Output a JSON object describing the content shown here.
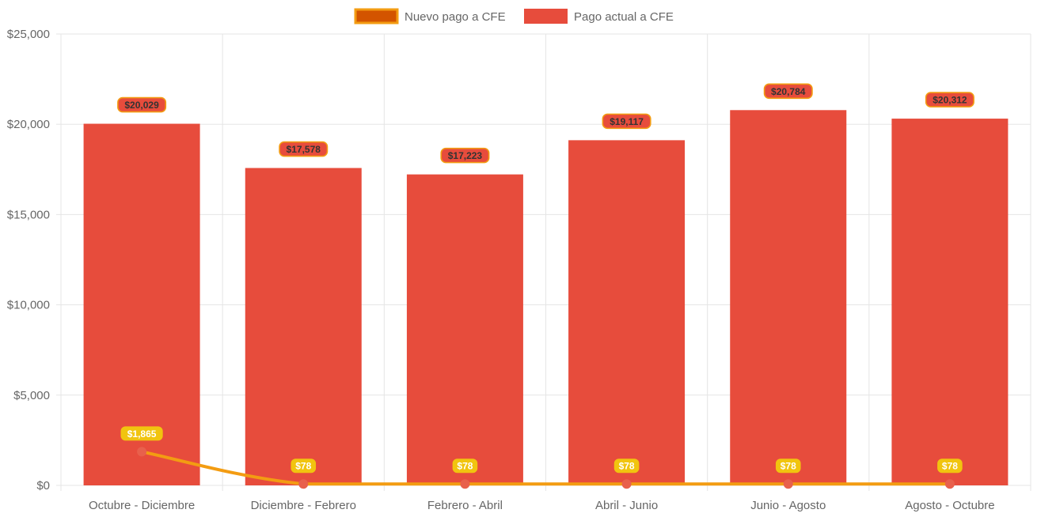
{
  "chart_data": {
    "type": "bar",
    "categories": [
      "Octubre - Diciembre",
      "Diciembre - Febrero",
      "Febrero - Abril",
      "Abril - Junio",
      "Junio - Agosto",
      "Agosto - Octubre"
    ],
    "series": [
      {
        "name": "Nuevo pago a CFE",
        "render": "line",
        "values": [
          1865,
          78,
          78,
          78,
          78,
          78
        ],
        "labels": [
          "$1,865",
          "$78",
          "$78",
          "$78",
          "$78",
          "$78"
        ],
        "color": "#f39c12",
        "point_color": "#e8604c",
        "label_bg": "#f1c40f",
        "label_text_color": "#ffffff",
        "legend_fill": "#d35400"
      },
      {
        "name": "Pago actual a CFE",
        "render": "bar",
        "values": [
          20029,
          17578,
          17223,
          19117,
          20784,
          20312
        ],
        "labels": [
          "$20,029",
          "$17,578",
          "$17,223",
          "$19,117",
          "$20,784",
          "$20,312"
        ],
        "color": "#e74c3c",
        "label_bg": "#e74c3c",
        "label_border": "#f39c12",
        "label_text_color": "#333333"
      }
    ],
    "y_ticks": [
      0,
      5000,
      10000,
      15000,
      20000,
      25000
    ],
    "y_tick_labels": [
      "$0",
      "$5,000",
      "$10,000",
      "$15,000",
      "$20,000",
      "$25,000"
    ],
    "ylim": [
      0,
      25000
    ],
    "grid": true,
    "legend_position": "top-center",
    "title": "",
    "xlabel": "",
    "ylabel": ""
  }
}
